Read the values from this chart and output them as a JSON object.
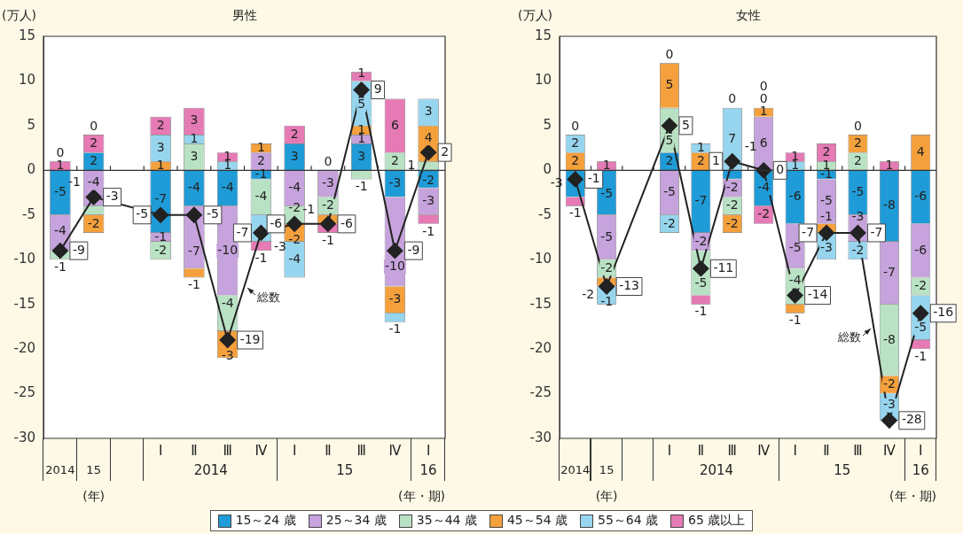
{
  "chart_data": [
    {
      "type": "bar",
      "title": "男性",
      "ylabel": "(万人)",
      "xlabel": "(年・期)",
      "stacked": true,
      "data_labels": true,
      "legend": "bottom",
      "marker": "diamond",
      "line_style": "solid",
      "categories": [
        "2014",
        "15",
        null,
        "Ⅰ",
        "Ⅱ",
        "Ⅲ",
        "Ⅳ",
        "Ⅰ",
        "Ⅱ",
        "Ⅲ",
        "Ⅳ",
        "Ⅰ"
      ],
      "ylim": [
        -30,
        15
      ],
      "yticks": [
        -30,
        -25,
        -20,
        -15,
        -10,
        -5,
        0,
        5,
        10,
        15
      ],
      "annotations": [
        "2014",
        "15",
        "16",
        "(年)"
      ],
      "series": [
        {
          "name": "15～24 歳",
          "color": "#1f9bd7",
          "values": [
            -5,
            2,
            null,
            -7,
            -4,
            -4,
            -1,
            3,
            0,
            3,
            -3,
            -2
          ]
        },
        {
          "name": "25～34 歳",
          "color": "#c6a3dc",
          "values": [
            -4,
            -4,
            null,
            -1,
            -7,
            -10,
            2,
            -4,
            -3,
            1,
            -10,
            -3
          ]
        },
        {
          "name": "35～44 歳",
          "color": "#b9e2c4",
          "values": [
            -1,
            -1,
            null,
            -2,
            3,
            -4,
            -4,
            -2,
            -2,
            -1,
            2,
            1
          ]
        },
        {
          "name": "45～54 歳",
          "color": "#f4a03c",
          "values": [
            null,
            -2,
            null,
            1,
            -1,
            -3,
            1,
            -2,
            -1,
            1,
            -3,
            4
          ]
        },
        {
          "name": "55～64 歳",
          "color": "#97d5ee",
          "values": [
            0,
            0,
            null,
            3,
            1,
            1,
            -3,
            -4,
            null,
            5,
            -1,
            3
          ]
        },
        {
          "name": "65 歳以上",
          "color": "#e67ab5",
          "values": [
            1,
            2,
            null,
            2,
            3,
            1,
            -1,
            2,
            -1,
            1,
            6,
            -1
          ]
        },
        {
          "name": "総数",
          "type": "line",
          "color": "#222222",
          "values": [
            -9,
            -3,
            null,
            -5,
            -5,
            -19,
            -7,
            -6,
            -6,
            9,
            -9,
            2
          ]
        }
      ]
    },
    {
      "type": "bar",
      "title": "女性",
      "ylabel": "(万人)",
      "xlabel": "(年・期)",
      "stacked": true,
      "data_labels": true,
      "legend": "bottom",
      "marker": "diamond",
      "line_style": "solid",
      "categories": [
        "2014",
        "15",
        null,
        "Ⅰ",
        "Ⅱ",
        "Ⅲ",
        "Ⅳ",
        "Ⅰ",
        "Ⅱ",
        "Ⅲ",
        "Ⅳ",
        "Ⅰ"
      ],
      "ylim": [
        -30,
        15
      ],
      "yticks": [
        -30,
        -25,
        -20,
        -15,
        -10,
        -5,
        0,
        5,
        10,
        15
      ],
      "annotations": [
        "2014",
        "15",
        "16",
        "(年)"
      ],
      "series": [
        {
          "name": "15～24 歳",
          "color": "#1f9bd7",
          "values": [
            -3,
            -5,
            null,
            2,
            -7,
            -1,
            -4,
            -6,
            -1,
            -5,
            -8,
            -6
          ]
        },
        {
          "name": "25～34 歳",
          "color": "#c6a3dc",
          "values": [
            0,
            -5,
            null,
            -5,
            -2,
            -2,
            6,
            -5,
            -5,
            -3,
            -7,
            -6
          ]
        },
        {
          "name": "35～44 歳",
          "color": "#b9e2c4",
          "values": [
            null,
            -2,
            null,
            5,
            -5,
            -2,
            0,
            -4,
            1,
            2,
            -8,
            -2
          ]
        },
        {
          "name": "45～54 歳",
          "color": "#f4a03c",
          "values": [
            2,
            -1,
            null,
            5,
            2,
            -2,
            1,
            -1,
            -1,
            2,
            -2,
            4
          ]
        },
        {
          "name": "55～64 歳",
          "color": "#97d5ee",
          "values": [
            2,
            -2,
            null,
            -2,
            1,
            7,
            0,
            1,
            -3,
            -2,
            -3,
            -5
          ]
        },
        {
          "name": "65 歳以上",
          "color": "#e67ab5",
          "values": [
            -1,
            1,
            null,
            0,
            -1,
            0,
            -2,
            1,
            2,
            0,
            1,
            -1
          ]
        },
        {
          "name": "総数",
          "type": "line",
          "color": "#222222",
          "values": [
            -1,
            -13,
            null,
            5,
            -11,
            1,
            0,
            -14,
            -7,
            -7,
            -28,
            -16
          ]
        }
      ]
    }
  ]
}
